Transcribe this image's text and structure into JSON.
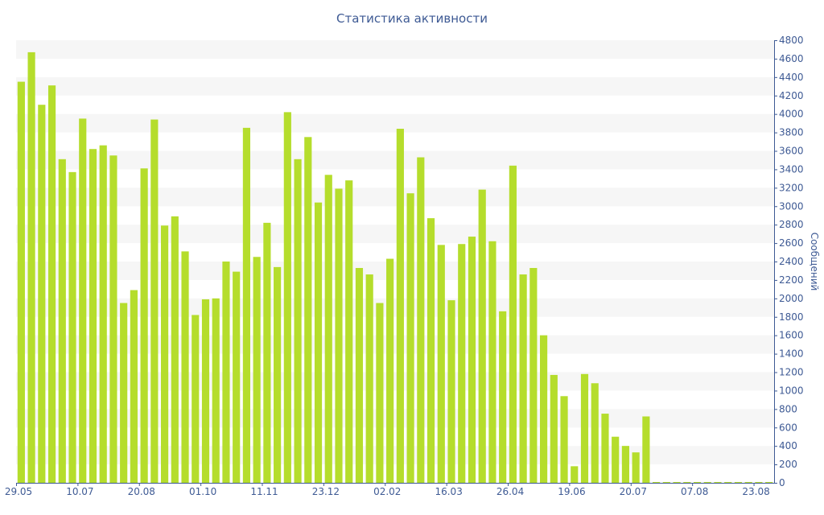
{
  "chart_data": {
    "type": "bar",
    "title": "Статистика активности",
    "xlabel": "",
    "ylabel": "Сообщений",
    "ylim": [
      0,
      4800
    ],
    "y_ticks": [
      0,
      200,
      400,
      600,
      800,
      1000,
      1200,
      1400,
      1600,
      1800,
      2000,
      2200,
      2400,
      2600,
      2800,
      3000,
      3200,
      3400,
      3600,
      3800,
      4000,
      4200,
      4400,
      4600,
      4800
    ],
    "x_tick_labels": [
      {
        "label": "29.05",
        "index": 0
      },
      {
        "label": "10.07",
        "index": 6
      },
      {
        "label": "20.08",
        "index": 12
      },
      {
        "label": "01.10",
        "index": 18
      },
      {
        "label": "11.11",
        "index": 24
      },
      {
        "label": "23.12",
        "index": 30
      },
      {
        "label": "02.02",
        "index": 36
      },
      {
        "label": "16.03",
        "index": 42
      },
      {
        "label": "26.04",
        "index": 48
      },
      {
        "label": "19.06",
        "index": 54
      },
      {
        "label": "20.07",
        "index": 60
      },
      {
        "label": "07.08",
        "index": 66
      },
      {
        "label": "23.08",
        "index": 72
      }
    ],
    "values": [
      4350,
      4670,
      4100,
      4310,
      3510,
      3370,
      3950,
      3620,
      3660,
      3550,
      1950,
      2090,
      3410,
      3940,
      2790,
      2890,
      2510,
      1820,
      1990,
      2000,
      2400,
      2290,
      3850,
      2450,
      2820,
      2340,
      4020,
      3510,
      3750,
      3040,
      3340,
      3190,
      3280,
      2330,
      2260,
      1950,
      2430,
      3840,
      3140,
      3530,
      2870,
      2580,
      1980,
      2590,
      2670,
      3180,
      2620,
      1860,
      3440,
      2260,
      2330,
      1600,
      1170,
      940,
      180,
      1180,
      1080,
      750,
      500,
      400,
      330,
      720,
      5,
      5,
      5,
      5,
      5,
      5,
      5,
      5,
      5,
      5,
      5,
      5
    ],
    "grid": true,
    "bar_color": "#b5dd2c",
    "axis_color": "#3e5a94",
    "band_color": "#f6f6f6"
  }
}
